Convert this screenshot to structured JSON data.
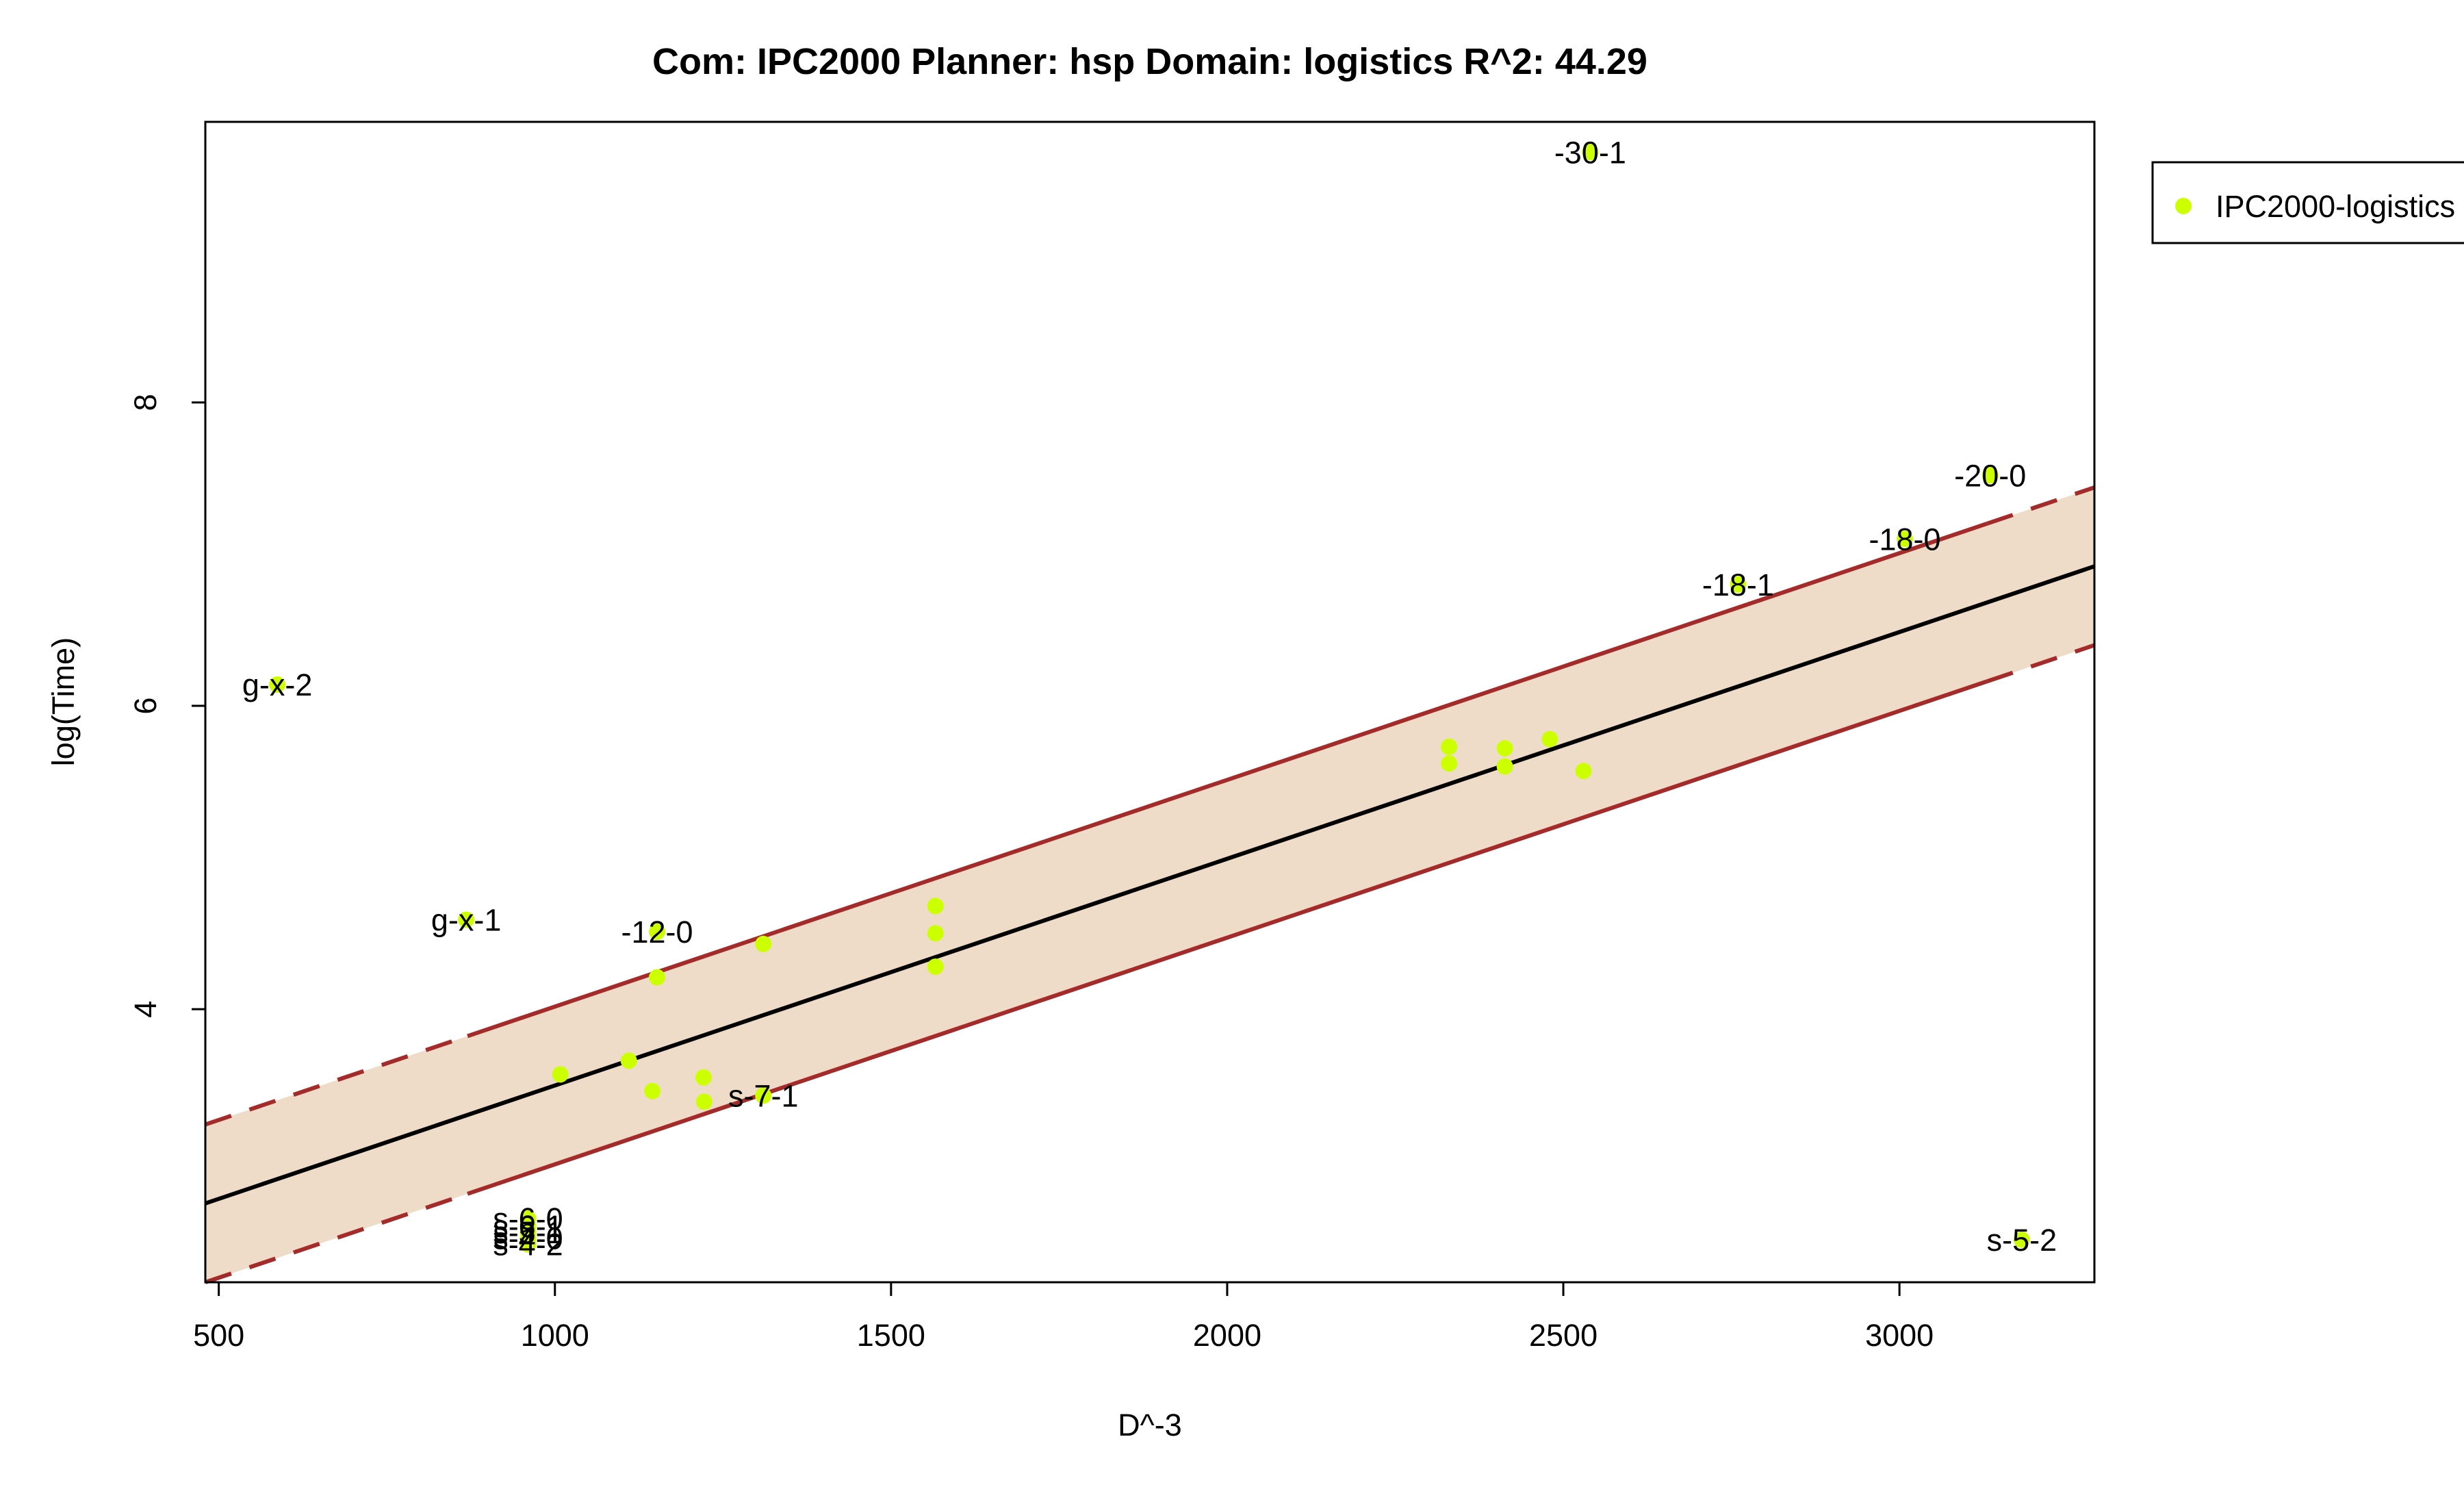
{
  "chart_data": {
    "type": "scatter",
    "title": "Com: IPC2000 Planner: hsp Domain: logistics R^2: 44.29",
    "xlabel": "D^-3",
    "ylabel": "log(Time)",
    "xlim": [
      480,
      3290
    ],
    "ylim": [
      2.2,
      9.85
    ],
    "xticks": [
      500,
      1000,
      1500,
      2000,
      2500,
      3000
    ],
    "yticks": [
      4,
      6,
      8
    ],
    "grid": false,
    "legend_position": "top-right (outside plot)",
    "colors": {
      "points": "#ccff00",
      "band_fill": "#eedcc8",
      "band_edge": "#a52a2a",
      "fit_line": "#000000",
      "frame": "#000000"
    },
    "series": [
      {
        "name": "IPC2000-logistics",
        "points": [
          {
            "x": 587,
            "y": 6.14,
            "label": "g-x-2"
          },
          {
            "x": 868,
            "y": 4.59,
            "label": "g-x-1"
          },
          {
            "x": 1008,
            "y": 3.57
          },
          {
            "x": 1110,
            "y": 3.66
          },
          {
            "x": 1145,
            "y": 3.46
          },
          {
            "x": 1152,
            "y": 4.21
          },
          {
            "x": 1152,
            "y": 4.51,
            "label": "-12-0"
          },
          {
            "x": 1221,
            "y": 3.55
          },
          {
            "x": 1222,
            "y": 3.39
          },
          {
            "x": 1310,
            "y": 4.43
          },
          {
            "x": 1310,
            "y": 3.43,
            "label": "s-7-1"
          },
          {
            "x": 1566,
            "y": 4.68
          },
          {
            "x": 1566,
            "y": 4.5
          },
          {
            "x": 1566,
            "y": 4.28
          },
          {
            "x": 2330,
            "y": 5.73
          },
          {
            "x": 2330,
            "y": 5.62
          },
          {
            "x": 2413,
            "y": 5.72
          },
          {
            "x": 2413,
            "y": 5.6
          },
          {
            "x": 2480,
            "y": 5.78
          },
          {
            "x": 2530,
            "y": 5.57
          },
          {
            "x": 2540,
            "y": 9.65,
            "label": "-30-1"
          },
          {
            "x": 2760,
            "y": 6.8,
            "label": "-18-1"
          },
          {
            "x": 3008,
            "y": 7.1,
            "label": "-18-0"
          },
          {
            "x": 3135,
            "y": 7.52,
            "label": "-20-0"
          },
          {
            "x": 3182,
            "y": 2.48,
            "label": "s-5-2"
          },
          {
            "x": 960,
            "y": 2.62,
            "label": "s-6-0"
          },
          {
            "x": 960,
            "y": 2.57,
            "label": "s-6-1"
          },
          {
            "x": 960,
            "y": 2.53,
            "label": "s-5-1"
          },
          {
            "x": 960,
            "y": 2.49,
            "label": "s-4-0"
          },
          {
            "x": 960,
            "y": 2.45,
            "label": "s-4-2"
          }
        ]
      }
    ],
    "fit_line": {
      "x": [
        480,
        3290
      ],
      "y": [
        2.72,
        6.92
      ]
    },
    "band_upper": {
      "x": [
        480,
        3290
      ],
      "y": [
        3.24,
        7.44
      ]
    },
    "band_lower": {
      "x": [
        480,
        3290
      ],
      "y": [
        2.2,
        6.4
      ]
    },
    "band_solid_x_range": [
      870,
      3130
    ]
  },
  "legend": {
    "label": "IPC2000-logistics"
  }
}
